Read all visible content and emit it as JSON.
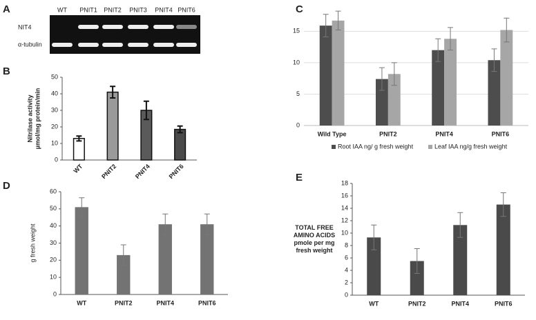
{
  "gel": {
    "panel": "A",
    "lanes": [
      "WT",
      "PNIT1",
      "PNIT2",
      "PNIT3",
      "PNIT4",
      "PNIT6"
    ],
    "rows": [
      "NIT4",
      "α-tubulin"
    ]
  },
  "chart_data": [
    {
      "type": "bar",
      "panel": "B",
      "ylabel": [
        "Nitrilase activity",
        "µmol/mg protein/min"
      ],
      "categories": [
        "WT",
        "PNIT2",
        "PNIT4",
        "PNIT6"
      ],
      "values": [
        13,
        41,
        30,
        18.5
      ],
      "errors": [
        1.5,
        3.5,
        5.5,
        2
      ],
      "colors": [
        "#ffffff",
        "#9a9a9a",
        "#5a5a5a",
        "#4a4a4a"
      ],
      "ylim": [
        0,
        50
      ],
      "yticks": [
        0,
        10,
        20,
        30,
        40,
        50
      ],
      "grid": false
    },
    {
      "type": "grouped-bar",
      "panel": "C",
      "categories": [
        "Wild Type",
        "PNIT2",
        "PNIT4",
        "PNIT6"
      ],
      "series": [
        {
          "name": "Root IAA ng/ g fresh weight",
          "color": "#4d4d4d",
          "values": [
            15.9,
            7.4,
            12,
            10.4
          ],
          "errors": [
            1.8,
            1.8,
            1.8,
            1.8
          ]
        },
        {
          "name": "Leaf IAA ng/g fresh weight",
          "color": "#a6a6a6",
          "values": [
            16.7,
            8.2,
            13.8,
            15.2
          ],
          "errors": [
            1.5,
            1.8,
            1.8,
            1.9
          ]
        }
      ],
      "ylim": [
        0,
        18
      ],
      "yticks": [
        0,
        5,
        10,
        15
      ],
      "grid": true,
      "legend": "bottom"
    },
    {
      "type": "bar",
      "panel": "D",
      "ylabel": [
        "g fresh weight"
      ],
      "categories": [
        "WT",
        "PNIT2",
        "PNIT4",
        "PNIT6"
      ],
      "values": [
        51,
        23,
        41,
        41
      ],
      "errors": [
        5.5,
        6,
        6,
        6
      ],
      "colors": [
        "#737373",
        "#737373",
        "#737373",
        "#737373"
      ],
      "ylim": [
        0,
        60
      ],
      "yticks": [
        0,
        10,
        20,
        30,
        40,
        50,
        60
      ],
      "grid": false
    },
    {
      "type": "bar",
      "panel": "E",
      "ylabel": [
        "TOTAL FREE",
        "AMINO ACIDS",
        "pmole per mg",
        "fresh weight"
      ],
      "categories": [
        "WT",
        "PNIT2",
        "PNIT4",
        "PNIT6"
      ],
      "values": [
        9.3,
        5.5,
        11.3,
        14.6
      ],
      "errors": [
        2,
        2,
        2,
        1.9
      ],
      "colors": [
        "#4a4a4a",
        "#4a4a4a",
        "#4a4a4a",
        "#4a4a4a"
      ],
      "ylim": [
        0,
        18
      ],
      "yticks": [
        0,
        2,
        4,
        6,
        8,
        10,
        12,
        14,
        16,
        18
      ],
      "grid": false
    }
  ]
}
